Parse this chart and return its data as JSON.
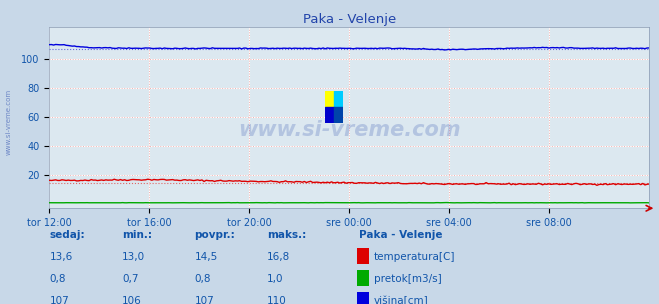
{
  "title": "Paka - Velenje",
  "bg_color": "#c8d8e8",
  "plot_bg_color": "#dce8f0",
  "grid_color_major": "#ffffff",
  "grid_color_minor": "#f0b0b0",
  "x_tick_labels": [
    "tor 12:00",
    "tor 16:00",
    "tor 20:00",
    "sre 00:00",
    "sre 04:00",
    "sre 08:00"
  ],
  "x_ticks_norm": [
    0.0,
    0.1667,
    0.3333,
    0.5,
    0.6667,
    0.8333
  ],
  "ylim": [
    -3,
    122
  ],
  "temp_color": "#dd0000",
  "flow_color": "#00aa00",
  "height_color": "#0000dd",
  "avg_color_temp": "#dd6666",
  "avg_color_height": "#6666dd",
  "watermark_text": "www.si-vreme.com",
  "watermark_color": "#2244aa",
  "sidebar_text": "www.si-vreme.com",
  "sidebar_color": "#2244aa",
  "footer_color": "#1155aa",
  "legend_title": "Paka - Velenje",
  "legend_items": [
    "temperatura[C]",
    "pretok[m3/s]",
    "višina[cm]"
  ],
  "legend_colors": [
    "#dd0000",
    "#00aa00",
    "#0000dd"
  ],
  "stats_headers": [
    "sedaj:",
    "min.:",
    "povpr.:",
    "maks.:"
  ],
  "stats_temp": [
    "13,6",
    "13,0",
    "14,5",
    "16,8"
  ],
  "stats_flow": [
    "0,8",
    "0,7",
    "0,8",
    "1,0"
  ],
  "stats_height": [
    "107",
    "106",
    "107",
    "110"
  ],
  "n_points": 288
}
